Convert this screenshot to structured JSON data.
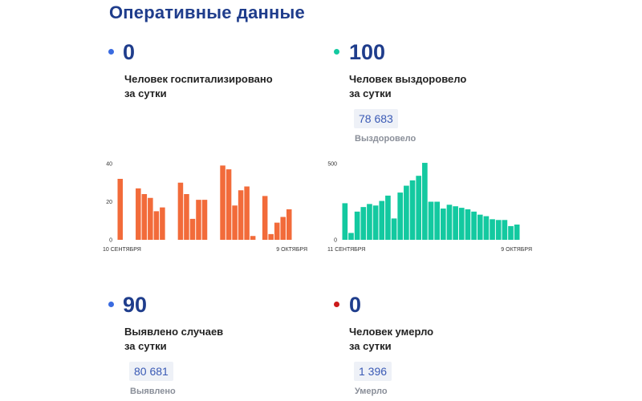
{
  "page_title": "Оперативные данные",
  "stats": {
    "hospitalized": {
      "value": "0",
      "label_line1": "Человек госпитализировано",
      "label_line2": "за сутки",
      "dot_color": "#3a6be0"
    },
    "recovered": {
      "value": "100",
      "label_line1": "Человек выздоровело",
      "label_line2": "за сутки",
      "total": "78 683",
      "total_label": "Выздоровело",
      "dot_color": "#13c9a0"
    },
    "cases": {
      "value": "90",
      "label_line1": "Выявлено случаев",
      "label_line2": "за сутки",
      "total": "80 681",
      "total_label": "Выявлено",
      "dot_color": "#3a6be0"
    },
    "deaths": {
      "value": "0",
      "label_line1": "Человек умерло",
      "label_line2": "за сутки",
      "total": "1 396",
      "total_label": "Умерло",
      "dot_color": "#cc1a1a"
    }
  },
  "chart_data": [
    {
      "type": "bar",
      "color": "#f26b3a",
      "x_start_label": "10 СЕНТЯБРЯ",
      "x_end_label": "9 ОКТЯБРЯ",
      "y_ticks": [
        0,
        20,
        40
      ],
      "ylim": [
        0,
        40
      ],
      "values": [
        32,
        0,
        0,
        27,
        24,
        22,
        15,
        17,
        0,
        0,
        30,
        24,
        11,
        21,
        21,
        0,
        0,
        39,
        37,
        18,
        26,
        28,
        2,
        0,
        23,
        3,
        9,
        12,
        16
      ]
    },
    {
      "type": "bar",
      "color": "#13c9a0",
      "x_start_label": "11 СЕНТЯБРЯ",
      "x_end_label": "9 ОКТЯБРЯ",
      "y_ticks": [
        0,
        500
      ],
      "ylim": [
        0,
        500
      ],
      "values": [
        240,
        45,
        185,
        215,
        235,
        225,
        255,
        290,
        140,
        310,
        355,
        390,
        420,
        505,
        250,
        250,
        205,
        230,
        220,
        210,
        200,
        185,
        165,
        155,
        135,
        130,
        130,
        90,
        100
      ]
    }
  ]
}
